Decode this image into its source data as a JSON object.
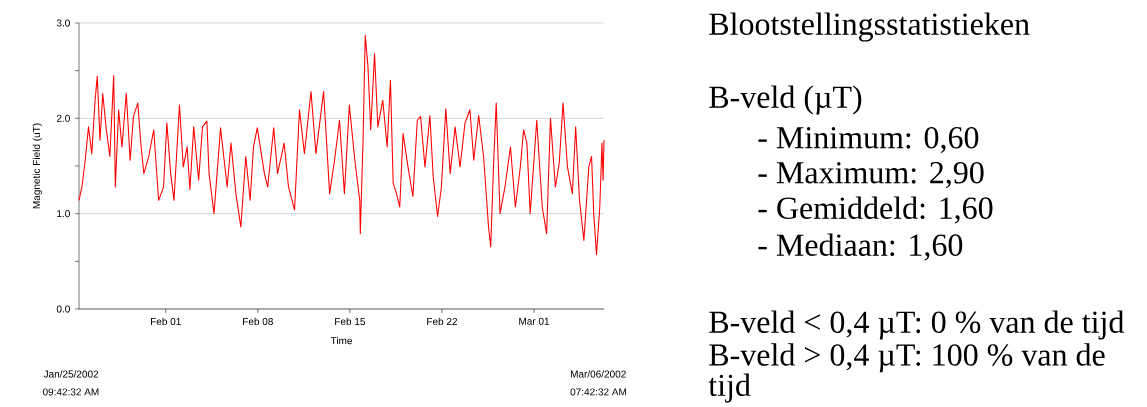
{
  "chart_data": [
    {
      "type": "line",
      "xlabel": "Time",
      "ylabel": "Magnetic Field (uT)",
      "annotations": [
        "Jan/25/2002",
        "09:42:32 AM",
        "Mar/06/2002",
        "07:42:32 AM"
      ],
      "xlim": [
        "2002-01-25T09:42",
        "2002-03-06T07:42"
      ],
      "ylim": [
        0,
        3
      ],
      "xticks": [
        {
          "value": "2002-02-01",
          "label": "Feb 01"
        },
        {
          "value": "2002-02-08",
          "label": "Feb 08"
        },
        {
          "value": "2002-02-15",
          "label": "Feb 15"
        },
        {
          "value": "2002-02-22",
          "label": "Feb 22"
        },
        {
          "value": "2002-03-01",
          "label": "Mar 01"
        }
      ],
      "yticks": [
        {
          "value": 0,
          "label": "0.0"
        },
        {
          "value": 0.5,
          "label": null
        },
        {
          "value": 1,
          "label": "1.0"
        },
        {
          "value": 1.5,
          "label": null
        },
        {
          "value": 2,
          "label": "2.0"
        },
        {
          "value": 2.5,
          "label": null
        },
        {
          "value": 3,
          "label": "3.0"
        }
      ],
      "grid": "y",
      "x": [
        "2002-01-25T09:42",
        "2002-01-25T15:00",
        "2002-01-25T21:00",
        "2002-01-26T03:00",
        "2002-01-26T09:00",
        "2002-01-26T15:00",
        "2002-01-26T19:00",
        "2002-01-27T00:00",
        "2002-01-27T05:00",
        "2002-01-27T11:00",
        "2002-01-27T18:00",
        "2002-01-28T01:00",
        "2002-01-28T04:00",
        "2002-01-28T10:00",
        "2002-01-28T16:00",
        "2002-01-29T00:00",
        "2002-01-29T07:00",
        "2002-01-29T13:00",
        "2002-01-29T21:00",
        "2002-01-30T02:00",
        "2002-01-30T08:00",
        "2002-01-30T17:00",
        "2002-01-31T02:00",
        "2002-01-31T11:00",
        "2002-01-31T20:00",
        "2002-02-01T02:00",
        "2002-02-01T09:00",
        "2002-02-01T15:00",
        "2002-02-02T01:00",
        "2002-02-02T08:00",
        "2002-02-02T15:00",
        "2002-02-02T20:00",
        "2002-02-03T03:00",
        "2002-02-03T12:00",
        "2002-02-03T19:00",
        "2002-02-04T03:00",
        "2002-02-04T07:00",
        "2002-02-04T16:00",
        "2002-02-05T04:00",
        "2002-02-05T16:00",
        "2002-02-05T23:00",
        "2002-02-06T08:00",
        "2002-02-06T17:00",
        "2002-02-07T02:00",
        "2002-02-07T10:00",
        "2002-02-07T16:00",
        "2002-02-07T23:00",
        "2002-02-08T12:00",
        "2002-02-08T18:00",
        "2002-02-09T05:00",
        "2002-02-09T12:00",
        "2002-02-10T00:00",
        "2002-02-10T08:00",
        "2002-02-10T19:00",
        "2002-02-11T04:00",
        "2002-02-11T13:00",
        "2002-02-12T01:00",
        "2002-02-12T10:00",
        "2002-02-13T00:00",
        "2002-02-13T11:00",
        "2002-02-13T20:00",
        "2002-02-14T05:00",
        "2002-02-14T14:00",
        "2002-02-14T23:00",
        "2002-02-15T09:00",
        "2002-02-15T18:00",
        "2002-02-15T19:00",
        "2002-02-16T00:00",
        "2002-02-16T04:00",
        "2002-02-16T09:00",
        "2002-02-16T14:00",
        "2002-02-16T21:00",
        "2002-02-17T03:00",
        "2002-02-17T12:00",
        "2002-02-17T20:00",
        "2002-02-18T02:00",
        "2002-02-18T07:00",
        "2002-02-18T13:00",
        "2002-02-18T19:00",
        "2002-02-19T01:00",
        "2002-02-19T10:00",
        "2002-02-19T19:00",
        "2002-02-20T03:00",
        "2002-02-20T09:00",
        "2002-02-20T17:00",
        "2002-02-21T02:00",
        "2002-02-21T08:00",
        "2002-02-21T16:00",
        "2002-02-21T23:00",
        "2002-02-22T07:00",
        "2002-02-22T15:00",
        "2002-02-23T00:00",
        "2002-02-23T09:00",
        "2002-02-23T18:00",
        "2002-02-24T03:00",
        "2002-02-24T10:00",
        "2002-02-24T19:00",
        "2002-02-25T04:00",
        "2002-02-25T13:00",
        "2002-02-25T17:00",
        "2002-02-25T22:00",
        "2002-02-26T03:00",
        "2002-02-26T10:00",
        "2002-02-26T19:00",
        "2002-02-27T05:00",
        "2002-02-27T14:00",
        "2002-02-27T23:00",
        "2002-02-28T05:00",
        "2002-02-28T11:00",
        "2002-02-28T17:00",
        "2002-03-01T05:00",
        "2002-03-01T15:00",
        "2002-03-01T23:00",
        "2002-03-02T06:00",
        "2002-03-02T15:00",
        "2002-03-02T22:00",
        "2002-03-03T05:00",
        "2002-03-03T13:00",
        "2002-03-03T22:00",
        "2002-03-04T04:00",
        "2002-03-04T11:00",
        "2002-03-04T19:00",
        "2002-03-05T04:00",
        "2002-03-05T09:00",
        "2002-03-05T13:00",
        "2002-03-05T18:00",
        "2002-03-06T00:00",
        "2002-03-06T04:00",
        "2002-03-06T06:00",
        "2002-03-06T07:42"
      ],
      "series": [
        {
          "color": "#ff0000",
          "values": [
            1.14,
            1.28,
            1.56,
            1.91,
            1.63,
            2.19,
            2.44,
            1.77,
            2.26,
            1.91,
            1.6,
            2.45,
            1.28,
            2.09,
            1.7,
            2.26,
            1.56,
            2.02,
            2.16,
            1.77,
            1.42,
            1.6,
            1.88,
            1.14,
            1.28,
            1.95,
            1.42,
            1.14,
            2.14,
            1.49,
            1.7,
            1.25,
            1.91,
            1.35,
            1.91,
            1.97,
            1.42,
            1.0,
            1.9,
            1.28,
            1.74,
            1.21,
            0.86,
            1.6,
            1.14,
            1.7,
            1.9,
            1.42,
            1.28,
            1.9,
            1.42,
            1.74,
            1.28,
            1.04,
            2.09,
            1.63,
            2.28,
            1.63,
            2.28,
            1.21,
            1.56,
            1.98,
            1.21,
            2.14,
            1.56,
            1.14,
            0.79,
            1.77,
            2.87,
            2.54,
            1.88,
            2.68,
            1.91,
            2.19,
            1.7,
            2.4,
            1.32,
            1.21,
            1.07,
            1.84,
            1.49,
            1.18,
            1.98,
            2.02,
            1.49,
            2.03,
            1.39,
            0.97,
            1.28,
            2.1,
            1.42,
            1.91,
            1.49,
            1.95,
            2.09,
            1.56,
            2.03,
            1.6,
            0.86,
            0.65,
            1.49,
            2.16,
            1.0,
            1.28,
            1.7,
            1.07,
            1.49,
            1.88,
            1.74,
            1.0,
            1.98,
            1.07,
            0.79,
            2.0,
            1.28,
            1.53,
            2.16,
            1.49,
            1.21,
            1.91,
            1.14,
            0.72,
            1.49,
            1.6,
            1.0,
            0.57,
            1.07,
            1.74,
            1.35,
            1.77
          ]
        }
      ]
    },
    {
      "type": "other",
      "title": "Blootstellingsstatistieken",
      "annotations": [
        "B-veld (µT)",
        "- Minimum: 0,60",
        "- Maximum: 2,90",
        "- Gemiddeld: 1,60",
        "- Mediaan: 1,60",
        "B-veld < 0,4 µT: 0 % van de tijd",
        "B-veld > 0,4 µT: 100 % van de tijd"
      ]
    }
  ]
}
